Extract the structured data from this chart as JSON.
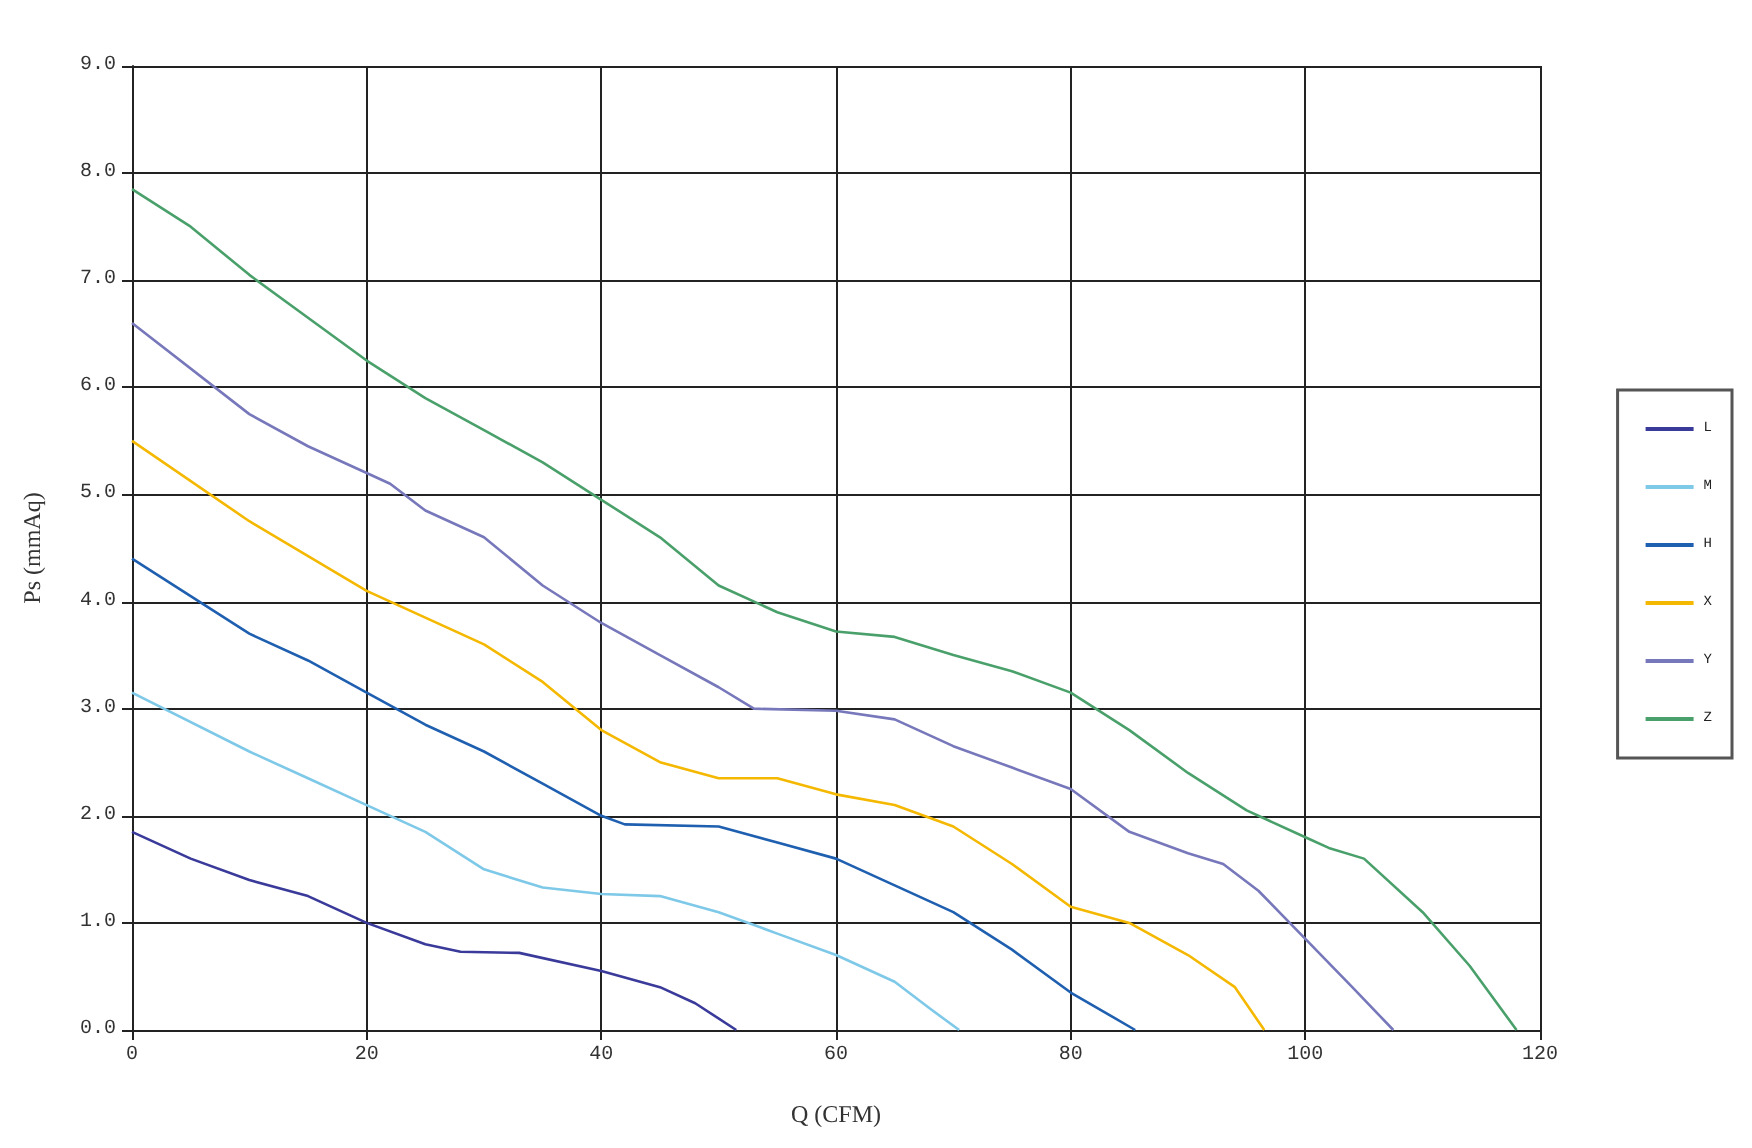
{
  "chart_data": {
    "type": "line",
    "xlabel": "Q (CFM)",
    "ylabel": "Ps (mmAq)",
    "xlim": [
      0,
      120
    ],
    "xticks": [
      0,
      20,
      40,
      60,
      80,
      100,
      120
    ],
    "ylim": [
      0,
      9
    ],
    "yticks": [
      {
        "value": 0,
        "label": "0.0"
      },
      {
        "value": 1,
        "label": "1.0"
      },
      {
        "value": 2,
        "label": "2.0"
      },
      {
        "value": 3,
        "label": "3.0"
      },
      {
        "value": 4,
        "label": "4.0"
      },
      {
        "value": 5,
        "label": "5.0"
      },
      {
        "value": 6,
        "label": "6.0"
      },
      {
        "value": 7,
        "label": "7.0"
      },
      {
        "value": 8,
        "label": "8.0"
      },
      {
        "value": 9,
        "label": "9.0"
      }
    ],
    "grid": true,
    "legend": "right",
    "marker": "none",
    "line_style": "solid",
    "series": [
      {
        "name": "L",
        "color": "#3a3a9a",
        "x": [
          0,
          5,
          10,
          15,
          20,
          25,
          28,
          33,
          40,
          45,
          48,
          51.5
        ],
        "values": [
          1.85,
          1.6,
          1.4,
          1.25,
          1.0,
          0.8,
          0.73,
          0.72,
          0.55,
          0.4,
          0.25,
          0
        ]
      },
      {
        "name": "M",
        "color": "#7ec8e8",
        "x": [
          0,
          10,
          15,
          20,
          25,
          30,
          35,
          40,
          45,
          50,
          55,
          60,
          65,
          68,
          70.5
        ],
        "values": [
          3.15,
          2.6,
          2.35,
          2.1,
          1.85,
          1.5,
          1.33,
          1.27,
          1.25,
          1.1,
          0.9,
          0.7,
          0.45,
          0.2,
          0
        ]
      },
      {
        "name": "H",
        "color": "#1f5fb0",
        "x": [
          0,
          5,
          10,
          15,
          20,
          25,
          30,
          35,
          40,
          42,
          50,
          55,
          60,
          65,
          70,
          75,
          80,
          85.5
        ],
        "values": [
          4.4,
          4.05,
          3.7,
          3.45,
          3.15,
          2.85,
          2.6,
          2.3,
          2.0,
          1.92,
          1.9,
          1.75,
          1.6,
          1.35,
          1.1,
          0.75,
          0.35,
          0
        ]
      },
      {
        "name": "X",
        "color": "#f5b800",
        "x": [
          0,
          10,
          20,
          30,
          35,
          40,
          45,
          50,
          55,
          60,
          65,
          70,
          75,
          80,
          85,
          90,
          94,
          96.5
        ],
        "values": [
          5.5,
          4.75,
          4.1,
          3.6,
          3.25,
          2.8,
          2.5,
          2.35,
          2.35,
          2.2,
          2.1,
          1.9,
          1.55,
          1.15,
          1.0,
          0.7,
          0.4,
          0
        ]
      },
      {
        "name": "Y",
        "color": "#7777bb",
        "x": [
          0,
          10,
          15,
          20,
          22,
          25,
          30,
          35,
          40,
          45,
          50,
          53,
          60,
          65,
          70,
          75,
          80,
          85,
          90,
          93,
          96,
          100,
          104,
          107.5
        ],
        "values": [
          6.6,
          5.75,
          5.45,
          5.2,
          5.1,
          4.85,
          4.6,
          4.15,
          3.8,
          3.5,
          3.2,
          3.0,
          2.98,
          2.9,
          2.65,
          2.45,
          2.25,
          1.85,
          1.65,
          1.55,
          1.3,
          0.85,
          0.4,
          0
        ]
      },
      {
        "name": "Z",
        "color": "#4aa06a",
        "x": [
          0,
          5,
          10,
          15,
          20,
          25,
          30,
          35,
          40,
          45,
          50,
          55,
          60,
          65,
          70,
          75,
          80,
          85,
          90,
          95,
          100,
          102,
          105,
          110,
          114,
          118
        ],
        "values": [
          7.85,
          7.5,
          7.05,
          6.65,
          6.25,
          5.9,
          5.6,
          5.3,
          4.95,
          4.6,
          4.15,
          3.9,
          3.72,
          3.67,
          3.5,
          3.35,
          3.15,
          2.8,
          2.4,
          2.05,
          1.8,
          1.7,
          1.6,
          1.1,
          0.6,
          0
        ]
      }
    ]
  }
}
